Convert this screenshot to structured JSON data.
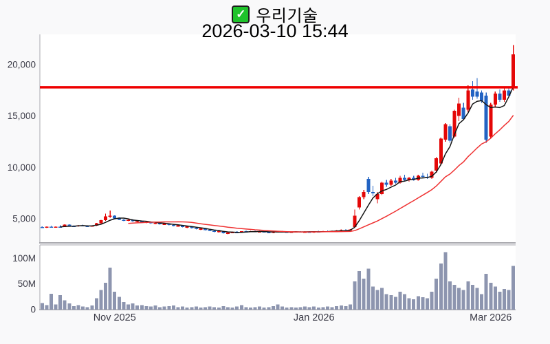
{
  "page": {
    "checkbox_glyph": "✓",
    "stock_name": "우리기술",
    "timestamp": "2026-03-10 15:44"
  },
  "colors": {
    "background": "#f9f9fa",
    "plot_bg": "#ffffff",
    "border": "#a8a8ae",
    "axis_text": "#3a3a46",
    "up_candle": "#e40707",
    "down_candle": "#2263c3",
    "ma_short": "#141414",
    "ma_long": "#ef3131",
    "alert_line": "#ee0000",
    "volume_bar": "#8d95af"
  },
  "chart_data": {
    "type": "candlestick+volume",
    "title": "우리기술",
    "subtitle": "2026-03-10 15:44",
    "alert_line_price": 17800,
    "price_axis": {
      "ticks": [
        5000,
        10000,
        15000,
        20000
      ],
      "tick_labels": [
        "5,000",
        "10,000",
        "15,000",
        "20,000"
      ],
      "range": [
        2700,
        22300
      ]
    },
    "volume_axis": {
      "ticks": [
        0,
        50,
        100
      ],
      "tick_labels": [
        "0",
        "50M",
        "100M"
      ],
      "unit": "millions of shares",
      "range": [
        0,
        126
      ]
    },
    "x_axis": {
      "labels": [
        {
          "text": "Nov 2025",
          "index": 16
        },
        {
          "text": "Jan 2026",
          "index": 60
        },
        {
          "text": "Mar 2026",
          "index": 99
        }
      ]
    },
    "moving_averages": [
      {
        "name": "short",
        "period": 5
      },
      {
        "name": "long",
        "period": 20
      }
    ],
    "candles_format": [
      "open",
      "high",
      "low",
      "close",
      "volume_M"
    ],
    "candles": [
      [
        4200,
        4280,
        4100,
        4150,
        13
      ],
      [
        4150,
        4250,
        4080,
        4230,
        9
      ],
      [
        4230,
        4320,
        4150,
        4180,
        31
      ],
      [
        4180,
        4260,
        4120,
        4240,
        10
      ],
      [
        4240,
        4380,
        4180,
        4210,
        28
      ],
      [
        4210,
        4480,
        4180,
        4420,
        18
      ],
      [
        4420,
        4450,
        4250,
        4300,
        12
      ],
      [
        4300,
        4360,
        4200,
        4250,
        7
      ],
      [
        4250,
        4400,
        4220,
        4380,
        9
      ],
      [
        4380,
        4420,
        4280,
        4320,
        6
      ],
      [
        4320,
        4380,
        4240,
        4280,
        5
      ],
      [
        4280,
        4350,
        4230,
        4330,
        8
      ],
      [
        4330,
        4600,
        4300,
        4560,
        22
      ],
      [
        4560,
        4900,
        4500,
        4850,
        38
      ],
      [
        4850,
        5500,
        4800,
        5250,
        52
      ],
      [
        5250,
        5800,
        5100,
        5300,
        82
      ],
      [
        5300,
        5350,
        4950,
        5050,
        35
      ],
      [
        5050,
        5150,
        4850,
        4900,
        25
      ],
      [
        4900,
        5000,
        4750,
        4820,
        15
      ],
      [
        4820,
        4950,
        4780,
        4900,
        10
      ],
      [
        4900,
        4950,
        4700,
        4750,
        12
      ],
      [
        4750,
        4850,
        4650,
        4800,
        8
      ],
      [
        4800,
        4820,
        4600,
        4650,
        9
      ],
      [
        4650,
        4750,
        4550,
        4700,
        7
      ],
      [
        4700,
        4720,
        4500,
        4550,
        6
      ],
      [
        4550,
        4650,
        4450,
        4600,
        8
      ],
      [
        4600,
        4620,
        4420,
        4470,
        5
      ],
      [
        4470,
        4550,
        4400,
        4520,
        6
      ],
      [
        4520,
        4540,
        4350,
        4400,
        7
      ],
      [
        4400,
        4450,
        4250,
        4300,
        8
      ],
      [
        4300,
        4380,
        4220,
        4350,
        5
      ],
      [
        4350,
        4360,
        4150,
        4200,
        6
      ],
      [
        4200,
        4280,
        4100,
        4250,
        4
      ],
      [
        4250,
        4260,
        4050,
        4100,
        5
      ],
      [
        4100,
        4150,
        3950,
        4000,
        6
      ],
      [
        4000,
        4080,
        3900,
        4050,
        4
      ],
      [
        4050,
        4060,
        3850,
        3900,
        5
      ],
      [
        3900,
        3980,
        3780,
        3820,
        6
      ],
      [
        3820,
        3900,
        3700,
        3750,
        5
      ],
      [
        3750,
        3850,
        3650,
        3800,
        4
      ],
      [
        3800,
        3820,
        3550,
        3600,
        7
      ],
      [
        3600,
        3700,
        3500,
        3650,
        5
      ],
      [
        3650,
        3750,
        3600,
        3700,
        4
      ],
      [
        3700,
        3780,
        3620,
        3660,
        6
      ],
      [
        3660,
        3800,
        3640,
        3780,
        9
      ],
      [
        3780,
        3850,
        3700,
        3750,
        5
      ],
      [
        3750,
        3830,
        3680,
        3800,
        4
      ],
      [
        3800,
        3850,
        3700,
        3740,
        5
      ],
      [
        3740,
        3820,
        3660,
        3780,
        6
      ],
      [
        3780,
        3800,
        3650,
        3700,
        4
      ],
      [
        3700,
        3760,
        3620,
        3650,
        5
      ],
      [
        3650,
        3740,
        3600,
        3720,
        7
      ],
      [
        3720,
        3800,
        3660,
        3760,
        10
      ],
      [
        3760,
        3820,
        3680,
        3720,
        6
      ],
      [
        3720,
        3780,
        3640,
        3680,
        4
      ],
      [
        3680,
        3760,
        3620,
        3730,
        5
      ],
      [
        3730,
        3800,
        3680,
        3770,
        4
      ],
      [
        3770,
        3810,
        3690,
        3720,
        5
      ],
      [
        3720,
        3790,
        3660,
        3750,
        6
      ],
      [
        3750,
        3800,
        3650,
        3700,
        5
      ],
      [
        3700,
        3780,
        3640,
        3760,
        6
      ],
      [
        3760,
        3820,
        3700,
        3740,
        4
      ],
      [
        3740,
        3830,
        3700,
        3800,
        5
      ],
      [
        3800,
        3870,
        3740,
        3780,
        6
      ],
      [
        3780,
        3850,
        3720,
        3830,
        5
      ],
      [
        3830,
        3900,
        3780,
        3860,
        7
      ],
      [
        3860,
        3950,
        3800,
        3900,
        8
      ],
      [
        3900,
        3980,
        3840,
        3880,
        7
      ],
      [
        3880,
        4000,
        3850,
        3960,
        10
      ],
      [
        4200,
        5900,
        4100,
        5300,
        55
      ],
      [
        6100,
        7200,
        5900,
        7100,
        75
      ],
      [
        7100,
        7800,
        6900,
        7600,
        60
      ],
      [
        8900,
        9100,
        7400,
        7600,
        80
      ],
      [
        7600,
        8200,
        7200,
        7500,
        45
      ],
      [
        6900,
        7600,
        6500,
        7400,
        38
      ],
      [
        7400,
        8600,
        7300,
        8500,
        42
      ],
      [
        8500,
        8800,
        8100,
        8300,
        30
      ],
      [
        8300,
        8900,
        8200,
        8700,
        28
      ],
      [
        8700,
        9000,
        8400,
        8500,
        25
      ],
      [
        8500,
        9200,
        8400,
        9000,
        35
      ],
      [
        9000,
        9300,
        8700,
        8800,
        30
      ],
      [
        8800,
        9100,
        8600,
        9000,
        22
      ],
      [
        9000,
        9200,
        8700,
        8800,
        20
      ],
      [
        8800,
        9300,
        8700,
        9200,
        26
      ],
      [
        9200,
        9500,
        9000,
        9100,
        24
      ],
      [
        9100,
        9400,
        8900,
        9000,
        22
      ],
      [
        9000,
        9700,
        8900,
        9600,
        35
      ],
      [
        9700,
        11000,
        9500,
        10900,
        60
      ],
      [
        10400,
        12900,
        10300,
        12800,
        90
      ],
      [
        12700,
        14300,
        12500,
        14200,
        112
      ],
      [
        14000,
        14200,
        12400,
        12600,
        55
      ],
      [
        13000,
        15600,
        12900,
        15500,
        48
      ],
      [
        15000,
        16800,
        14500,
        16200,
        42
      ],
      [
        15800,
        16300,
        14600,
        14700,
        38
      ],
      [
        15600,
        18000,
        15400,
        17500,
        55
      ],
      [
        17600,
        18400,
        16600,
        16900,
        48
      ],
      [
        17400,
        18700,
        16700,
        16900,
        42
      ],
      [
        17300,
        17500,
        16300,
        16500,
        30
      ],
      [
        17000,
        17300,
        12400,
        12700,
        70
      ],
      [
        13000,
        16300,
        12800,
        16100,
        52
      ],
      [
        16100,
        17400,
        15800,
        17200,
        45
      ],
      [
        17200,
        17600,
        16400,
        16600,
        35
      ],
      [
        16600,
        17800,
        16400,
        17500,
        40
      ],
      [
        17500,
        17800,
        16800,
        17000,
        38
      ],
      [
        17800,
        21900,
        17500,
        21000,
        85
      ]
    ]
  }
}
